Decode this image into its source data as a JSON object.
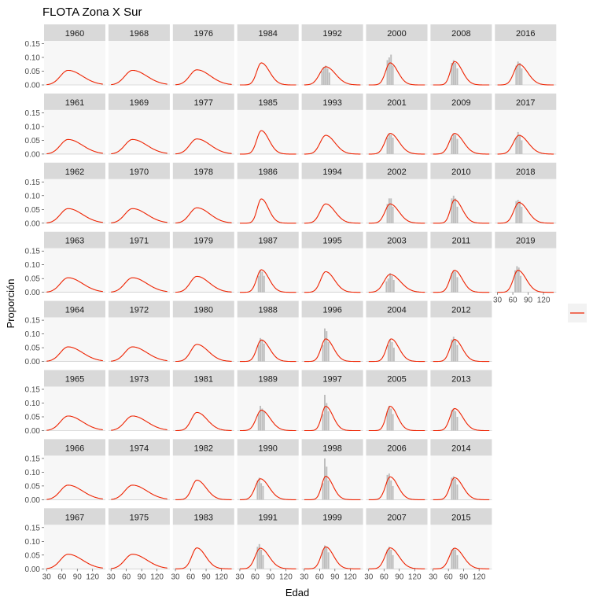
{
  "chart_data": {
    "type": "bar",
    "title": "FLOTA Zona X Sur",
    "xlabel": "Edad",
    "ylabel": "Proporción",
    "panel_layout": "column-major, 8 rows per column",
    "xlim": [
      25,
      145
    ],
    "ylim": [
      0,
      0.16
    ],
    "x_ticks": [
      30,
      60,
      90,
      120
    ],
    "x_tick_labels": [
      "30",
      "60",
      "90",
      "120"
    ],
    "y_ticks": [
      0,
      0.05,
      0.1,
      0.15
    ],
    "y_tick_labels": [
      "0.00",
      "0.05",
      "0.10",
      "0.15"
    ],
    "legend": {
      "position": "right",
      "entries": [
        {
          "label": "",
          "color": "#ee2200",
          "kind": "line"
        }
      ]
    },
    "bar_color": "#bdbdbd",
    "fit_color": "#ee2200",
    "panel_background": "#f7f7f7",
    "strip_background": "#d9d9d9",
    "panels": [
      {
        "year": "1960",
        "fit": {
          "peak_x": 72,
          "peak_y": 0.053,
          "spread_left": 15,
          "spread_right": 28
        },
        "bars": []
      },
      {
        "year": "1961",
        "fit": {
          "peak_x": 72,
          "peak_y": 0.053,
          "spread_left": 15,
          "spread_right": 28
        },
        "bars": []
      },
      {
        "year": "1962",
        "fit": {
          "peak_x": 72,
          "peak_y": 0.053,
          "spread_left": 15,
          "spread_right": 28
        },
        "bars": []
      },
      {
        "year": "1963",
        "fit": {
          "peak_x": 72,
          "peak_y": 0.053,
          "spread_left": 15,
          "spread_right": 28
        },
        "bars": []
      },
      {
        "year": "1964",
        "fit": {
          "peak_x": 72,
          "peak_y": 0.053,
          "spread_left": 15,
          "spread_right": 28
        },
        "bars": []
      },
      {
        "year": "1965",
        "fit": {
          "peak_x": 72,
          "peak_y": 0.053,
          "spread_left": 15,
          "spread_right": 28
        },
        "bars": []
      },
      {
        "year": "1966",
        "fit": {
          "peak_x": 72,
          "peak_y": 0.053,
          "spread_left": 15,
          "spread_right": 28
        },
        "bars": []
      },
      {
        "year": "1967",
        "fit": {
          "peak_x": 72,
          "peak_y": 0.053,
          "spread_left": 15,
          "spread_right": 28
        },
        "bars": []
      },
      {
        "year": "1968",
        "fit": {
          "peak_x": 72,
          "peak_y": 0.053,
          "spread_left": 15,
          "spread_right": 28
        },
        "bars": []
      },
      {
        "year": "1969",
        "fit": {
          "peak_x": 72,
          "peak_y": 0.053,
          "spread_left": 15,
          "spread_right": 28
        },
        "bars": []
      },
      {
        "year": "1970",
        "fit": {
          "peak_x": 72,
          "peak_y": 0.053,
          "spread_left": 15,
          "spread_right": 28
        },
        "bars": []
      },
      {
        "year": "1971",
        "fit": {
          "peak_x": 72,
          "peak_y": 0.053,
          "spread_left": 15,
          "spread_right": 28
        },
        "bars": []
      },
      {
        "year": "1972",
        "fit": {
          "peak_x": 72,
          "peak_y": 0.053,
          "spread_left": 15,
          "spread_right": 28
        },
        "bars": []
      },
      {
        "year": "1973",
        "fit": {
          "peak_x": 72,
          "peak_y": 0.053,
          "spread_left": 15,
          "spread_right": 28
        },
        "bars": []
      },
      {
        "year": "1974",
        "fit": {
          "peak_x": 72,
          "peak_y": 0.053,
          "spread_left": 15,
          "spread_right": 28
        },
        "bars": []
      },
      {
        "year": "1975",
        "fit": {
          "peak_x": 72,
          "peak_y": 0.053,
          "spread_left": 15,
          "spread_right": 28
        },
        "bars": []
      },
      {
        "year": "1976",
        "fit": {
          "peak_x": 72,
          "peak_y": 0.055,
          "spread_left": 14,
          "spread_right": 26
        },
        "bars": []
      },
      {
        "year": "1977",
        "fit": {
          "peak_x": 72,
          "peak_y": 0.055,
          "spread_left": 14,
          "spread_right": 26
        },
        "bars": []
      },
      {
        "year": "1978",
        "fit": {
          "peak_x": 72,
          "peak_y": 0.056,
          "spread_left": 14,
          "spread_right": 25
        },
        "bars": []
      },
      {
        "year": "1979",
        "fit": {
          "peak_x": 72,
          "peak_y": 0.058,
          "spread_left": 13,
          "spread_right": 24
        },
        "bars": []
      },
      {
        "year": "1980",
        "fit": {
          "peak_x": 72,
          "peak_y": 0.062,
          "spread_left": 12,
          "spread_right": 22
        },
        "bars": []
      },
      {
        "year": "1981",
        "fit": {
          "peak_x": 72,
          "peak_y": 0.066,
          "spread_left": 11,
          "spread_right": 20
        },
        "bars": []
      },
      {
        "year": "1982",
        "fit": {
          "peak_x": 72,
          "peak_y": 0.071,
          "spread_left": 10,
          "spread_right": 18
        },
        "bars": []
      },
      {
        "year": "1983",
        "fit": {
          "peak_x": 72,
          "peak_y": 0.076,
          "spread_left": 10,
          "spread_right": 17
        },
        "bars": []
      },
      {
        "year": "1984",
        "fit": {
          "peak_x": 72,
          "peak_y": 0.08,
          "spread_left": 9,
          "spread_right": 16
        },
        "bars": []
      },
      {
        "year": "1985",
        "fit": {
          "peak_x": 72,
          "peak_y": 0.085,
          "spread_left": 9,
          "spread_right": 15
        },
        "bars": []
      },
      {
        "year": "1986",
        "fit": {
          "peak_x": 72,
          "peak_y": 0.088,
          "spread_left": 8,
          "spread_right": 14
        },
        "bars": []
      },
      {
        "year": "1987",
        "fit": {
          "peak_x": 72,
          "peak_y": 0.082,
          "spread_left": 9,
          "spread_right": 15
        },
        "bars": [
          0.06,
          0.08,
          0.075,
          0.06
        ]
      },
      {
        "year": "1988",
        "fit": {
          "peak_x": 72,
          "peak_y": 0.078,
          "spread_left": 9,
          "spread_right": 16
        },
        "bars": [
          0.06,
          0.085,
          0.08,
          0.065
        ]
      },
      {
        "year": "1989",
        "fit": {
          "peak_x": 72,
          "peak_y": 0.074,
          "spread_left": 10,
          "spread_right": 17
        },
        "bars": [
          0.06,
          0.09,
          0.08,
          0.07
        ]
      },
      {
        "year": "1990",
        "fit": {
          "peak_x": 70,
          "peak_y": 0.076,
          "spread_left": 10,
          "spread_right": 17
        },
        "bars": [
          0.07,
          0.08,
          0.06,
          0.05
        ]
      },
      {
        "year": "1991",
        "fit": {
          "peak_x": 70,
          "peak_y": 0.075,
          "spread_left": 10,
          "spread_right": 17
        },
        "bars": [
          0.08,
          0.09,
          0.07,
          0.05
        ]
      },
      {
        "year": "1992",
        "fit": {
          "peak_x": 72,
          "peak_y": 0.066,
          "spread_left": 12,
          "spread_right": 19
        },
        "bars": [
          0.05,
          0.065,
          0.07,
          0.06,
          0.045
        ]
      },
      {
        "year": "1993",
        "fit": {
          "peak_x": 72,
          "peak_y": 0.068,
          "spread_left": 11,
          "spread_right": 18
        },
        "bars": []
      },
      {
        "year": "1994",
        "fit": {
          "peak_x": 72,
          "peak_y": 0.07,
          "spread_left": 11,
          "spread_right": 18
        },
        "bars": []
      },
      {
        "year": "1995",
        "fit": {
          "peak_x": 72,
          "peak_y": 0.075,
          "spread_left": 10,
          "spread_right": 17
        },
        "bars": []
      },
      {
        "year": "1996",
        "fit": {
          "peak_x": 72,
          "peak_y": 0.082,
          "spread_left": 9,
          "spread_right": 15
        },
        "bars": [
          0.06,
          0.12,
          0.11,
          0.07
        ]
      },
      {
        "year": "1997",
        "fit": {
          "peak_x": 72,
          "peak_y": 0.088,
          "spread_left": 8,
          "spread_right": 14
        },
        "bars": [
          0.06,
          0.13,
          0.1,
          0.07
        ]
      },
      {
        "year": "1998",
        "fit": {
          "peak_x": 72,
          "peak_y": 0.085,
          "spread_left": 8,
          "spread_right": 14
        },
        "bars": [
          0.06,
          0.15,
          0.12,
          0.07
        ]
      },
      {
        "year": "1999",
        "fit": {
          "peak_x": 72,
          "peak_y": 0.08,
          "spread_left": 9,
          "spread_right": 15
        },
        "bars": [
          0.07,
          0.085,
          0.08,
          0.06
        ]
      },
      {
        "year": "2000",
        "fit": {
          "peak_x": 72,
          "peak_y": 0.08,
          "spread_left": 9,
          "spread_right": 15
        },
        "bars": [
          0.09,
          0.1,
          0.11,
          0.07
        ]
      },
      {
        "year": "2001",
        "fit": {
          "peak_x": 72,
          "peak_y": 0.075,
          "spread_left": 10,
          "spread_right": 17
        },
        "bars": [
          0.06,
          0.075,
          0.07,
          0.06
        ]
      },
      {
        "year": "2002",
        "fit": {
          "peak_x": 72,
          "peak_y": 0.07,
          "spread_left": 10,
          "spread_right": 17
        },
        "bars": [
          0.07,
          0.09,
          0.09,
          0.06
        ]
      },
      {
        "year": "2003",
        "fit": {
          "peak_x": 72,
          "peak_y": 0.065,
          "spread_left": 12,
          "spread_right": 20
        },
        "bars": [
          0.04,
          0.05,
          0.07,
          0.06,
          0.045
        ]
      },
      {
        "year": "2004",
        "fit": {
          "peak_x": 74,
          "peak_y": 0.082,
          "spread_left": 9,
          "spread_right": 15
        },
        "bars": [
          0.06,
          0.08,
          0.07,
          0.05
        ]
      },
      {
        "year": "2005",
        "fit": {
          "peak_x": 72,
          "peak_y": 0.088,
          "spread_left": 8,
          "spread_right": 14
        },
        "bars": [
          0.07,
          0.09,
          0.08,
          0.06
        ]
      },
      {
        "year": "2006",
        "fit": {
          "peak_x": 72,
          "peak_y": 0.083,
          "spread_left": 9,
          "spread_right": 15
        },
        "bars": [
          0.09,
          0.095,
          0.07,
          0.05
        ]
      },
      {
        "year": "2007",
        "fit": {
          "peak_x": 72,
          "peak_y": 0.076,
          "spread_left": 10,
          "spread_right": 17
        },
        "bars": [
          0.07,
          0.08,
          0.07,
          0.05
        ]
      },
      {
        "year": "2008",
        "fit": {
          "peak_x": 72,
          "peak_y": 0.085,
          "spread_left": 8,
          "spread_right": 15
        },
        "bars": [
          0.08,
          0.09,
          0.08,
          0.06
        ]
      },
      {
        "year": "2009",
        "fit": {
          "peak_x": 72,
          "peak_y": 0.075,
          "spread_left": 10,
          "spread_right": 17
        },
        "bars": [
          0.06,
          0.075,
          0.07,
          0.055
        ]
      },
      {
        "year": "2010",
        "fit": {
          "peak_x": 72,
          "peak_y": 0.085,
          "spread_left": 8,
          "spread_right": 15
        },
        "bars": [
          0.09,
          0.1,
          0.09,
          0.06
        ]
      },
      {
        "year": "2011",
        "fit": {
          "peak_x": 72,
          "peak_y": 0.08,
          "spread_left": 9,
          "spread_right": 15
        },
        "bars": [
          0.07,
          0.08,
          0.075,
          0.055
        ]
      },
      {
        "year": "2012",
        "fit": {
          "peak_x": 72,
          "peak_y": 0.08,
          "spread_left": 9,
          "spread_right": 15
        },
        "bars": [
          0.08,
          0.09,
          0.08,
          0.06
        ]
      },
      {
        "year": "2013",
        "fit": {
          "peak_x": 72,
          "peak_y": 0.08,
          "spread_left": 9,
          "spread_right": 16
        },
        "bars": [
          0.075,
          0.08,
          0.07,
          0.05
        ]
      },
      {
        "year": "2014",
        "fit": {
          "peak_x": 72,
          "peak_y": 0.08,
          "spread_left": 9,
          "spread_right": 16
        },
        "bars": [
          0.08,
          0.085,
          0.075,
          0.055
        ]
      },
      {
        "year": "2015",
        "fit": {
          "peak_x": 72,
          "peak_y": 0.075,
          "spread_left": 10,
          "spread_right": 17
        },
        "bars": [
          0.07,
          0.075,
          0.07,
          0.05
        ]
      },
      {
        "year": "2016",
        "fit": {
          "peak_x": 72,
          "peak_y": 0.075,
          "spread_left": 10,
          "spread_right": 17
        },
        "bars": [
          0.07,
          0.085,
          0.08,
          0.06
        ]
      },
      {
        "year": "2017",
        "fit": {
          "peak_x": 72,
          "peak_y": 0.068,
          "spread_left": 11,
          "spread_right": 18
        },
        "bars": [
          0.06,
          0.08,
          0.07,
          0.05
        ]
      },
      {
        "year": "2018",
        "fit": {
          "peak_x": 72,
          "peak_y": 0.075,
          "spread_left": 10,
          "spread_right": 17
        },
        "bars": [
          0.08,
          0.085,
          0.08,
          0.06
        ]
      },
      {
        "year": "2019",
        "fit": {
          "peak_x": 70,
          "peak_y": 0.08,
          "spread_left": 9,
          "spread_right": 16
        },
        "bars": [
          0.08,
          0.095,
          0.09,
          0.06
        ]
      }
    ]
  }
}
